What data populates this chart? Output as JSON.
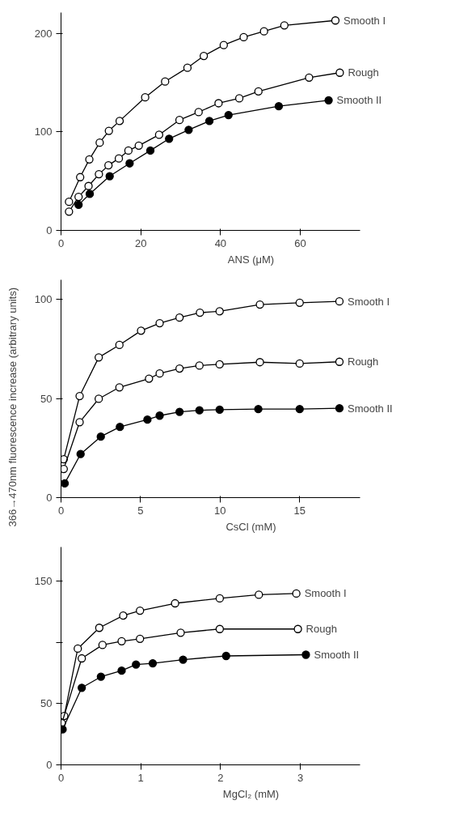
{
  "chart_data": [
    {
      "type": "line",
      "xlabel": "ANS (μM)",
      "xlim": [
        0,
        75
      ],
      "ylim": [
        0,
        221
      ],
      "xticks": [
        0,
        20,
        40,
        60
      ],
      "yticks": [
        0,
        100,
        200
      ],
      "marker": "circle",
      "grid": false,
      "series": [
        {
          "name": "Smooth I",
          "color": "#ffffff",
          "x": [
            2.0,
            4.8,
            7.1,
            9.7,
            12.0,
            14.7,
            21.1,
            26.1,
            31.7,
            35.8,
            40.8,
            45.8,
            50.9,
            56.0,
            68.8
          ],
          "values": [
            29,
            54,
            72,
            89,
            101,
            111,
            135,
            151,
            165,
            177,
            188,
            196,
            202,
            208,
            213
          ]
        },
        {
          "name": "Rough",
          "color": "#ffffff",
          "x": [
            2.0,
            4.4,
            6.9,
            9.5,
            11.9,
            14.5,
            16.9,
            19.5,
            24.6,
            29.7,
            34.5,
            39.5,
            44.7,
            49.5,
            62.2,
            69.9
          ],
          "values": [
            19,
            34,
            45,
            57,
            66,
            73,
            81,
            86,
            97,
            112,
            120,
            129,
            134,
            141,
            155,
            160
          ]
        },
        {
          "name": "Smooth II",
          "color": "#000000",
          "x": [
            4.4,
            7.2,
            12.2,
            17.2,
            22.4,
            27.1,
            32.0,
            37.2,
            42.0,
            54.6,
            67.1
          ],
          "values": [
            26,
            37,
            55,
            68,
            81,
            93,
            102,
            111,
            117,
            126,
            132
          ]
        }
      ]
    },
    {
      "type": "line",
      "xlabel": "CsCl (mM)",
      "ylabel": "366→470nm  fluorescence  increase  (arbitrary  units)",
      "xlim": [
        0,
        18.8
      ],
      "ylim": [
        0,
        110
      ],
      "xticks": [
        0,
        5,
        10,
        15
      ],
      "yticks": [
        0,
        50,
        100
      ],
      "marker": "circle",
      "grid": false,
      "series": [
        {
          "name": "Smooth I",
          "color": "#ffffff",
          "x": [
            0.17,
            1.17,
            2.37,
            3.67,
            5.03,
            6.2,
            7.45,
            8.73,
            9.97,
            12.5,
            15.0,
            17.5
          ],
          "values": [
            19.4,
            51.3,
            70.8,
            77.1,
            84.3,
            88.1,
            90.9,
            93.4,
            94.1,
            97.5,
            98.4,
            99.1
          ]
        },
        {
          "name": "Rough",
          "color": "#ffffff",
          "x": [
            0.17,
            1.17,
            2.37,
            3.67,
            5.53,
            6.2,
            7.45,
            8.7,
            9.97,
            12.5,
            15.0,
            17.5
          ],
          "values": [
            14.5,
            38.1,
            49.9,
            55.7,
            60.1,
            62.7,
            65.2,
            66.7,
            67.3,
            68.4,
            67.7,
            68.6
          ]
        },
        {
          "name": "Smooth II",
          "color": "#000000",
          "x": [
            0.23,
            1.23,
            2.5,
            3.7,
            5.43,
            6.2,
            7.45,
            8.7,
            9.97,
            12.4,
            15.0,
            17.5
          ],
          "values": [
            7.2,
            22.0,
            30.8,
            35.7,
            39.4,
            41.4,
            43.3,
            44.1,
            44.4,
            44.7,
            44.7,
            45.1
          ]
        }
      ]
    },
    {
      "type": "line",
      "xlabel": "MgCl₂ (mM)",
      "xlim": [
        0,
        3.75
      ],
      "ylim": [
        0,
        178
      ],
      "xticks": [
        0,
        1,
        2,
        3
      ],
      "yticks": [
        0,
        50,
        {
          "value": 100,
          "label": null
        },
        150
      ],
      "marker": "circle",
      "grid": false,
      "series": [
        {
          "name": "Smooth I",
          "color": "#ffffff",
          "x": [
            0.04,
            0.21,
            0.48,
            0.78,
            0.99,
            1.43,
            1.99,
            2.48,
            2.95
          ],
          "values": [
            40,
            95,
            112,
            122,
            126,
            132,
            136,
            139,
            140
          ]
        },
        {
          "name": "Rough",
          "color": "#ffffff",
          "x": [
            0.01,
            0.26,
            0.52,
            0.76,
            0.99,
            1.5,
            1.99,
            2.97
          ],
          "values": [
            34,
            87,
            98,
            101,
            103,
            108,
            111,
            111
          ]
        },
        {
          "name": "Smooth II",
          "color": "#000000",
          "x": [
            0.02,
            0.26,
            0.5,
            0.76,
            0.94,
            1.15,
            1.53,
            2.07,
            3.07
          ],
          "values": [
            29,
            63,
            72,
            77,
            82,
            83,
            86,
            89,
            90
          ]
        }
      ]
    }
  ]
}
